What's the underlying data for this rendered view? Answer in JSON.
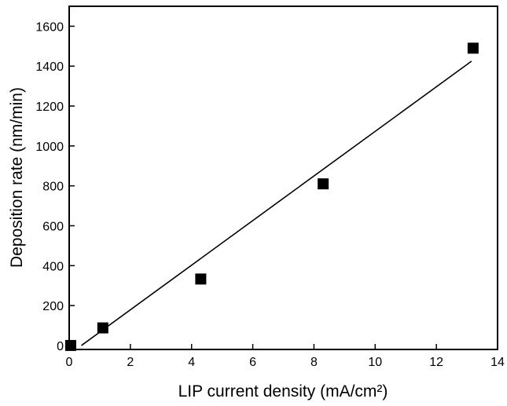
{
  "chart_data": {
    "type": "scatter",
    "title": "",
    "xlabel": "LIP current density (mA/cm²)",
    "ylabel": "Deposition rate (nm/min)",
    "xlim": [
      0,
      14
    ],
    "ylim": [
      -20,
      1700
    ],
    "x_ticks": [
      0,
      2,
      4,
      6,
      8,
      10,
      12,
      14
    ],
    "y_ticks": [
      0,
      200,
      400,
      600,
      800,
      1000,
      1200,
      1400,
      1600
    ],
    "grid": false,
    "legend": "none",
    "series": [
      {
        "marker": "filled-square",
        "color": "#000000",
        "points": [
          {
            "x": 0.05,
            "y": 0
          },
          {
            "x": 1.1,
            "y": 88
          },
          {
            "x": 4.3,
            "y": 333
          },
          {
            "x": 8.3,
            "y": 810
          },
          {
            "x": 13.2,
            "y": 1490
          }
        ]
      }
    ],
    "fit_line": {
      "type": "linear",
      "color": "#000000",
      "x": [
        0.4,
        13.15
      ],
      "y": [
        0,
        1425
      ]
    }
  }
}
